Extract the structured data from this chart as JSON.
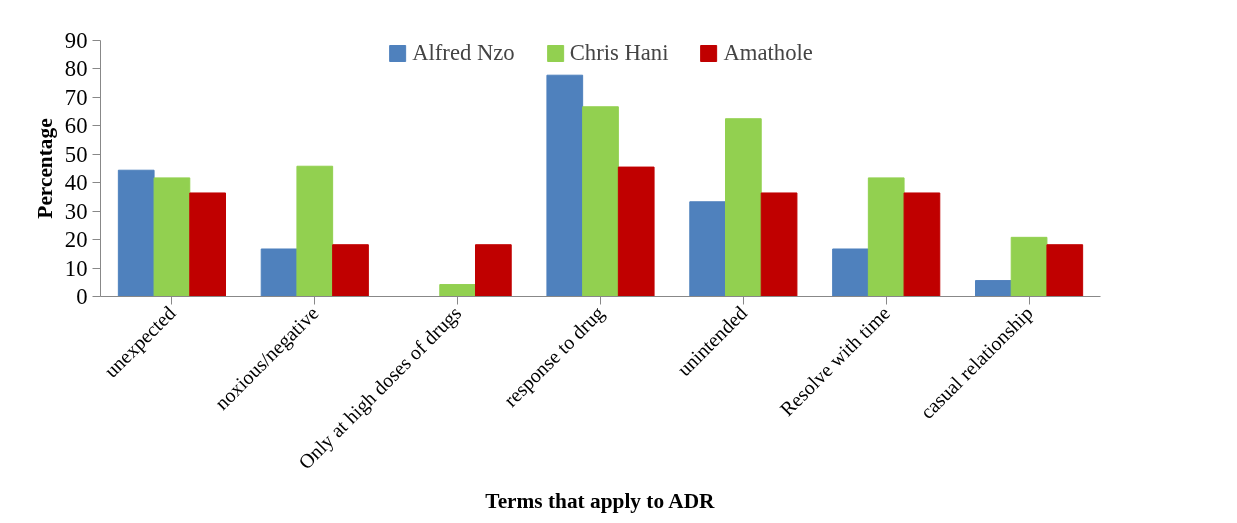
{
  "chart_data": {
    "type": "bar",
    "xlabel": "Terms that apply to ADR",
    "ylabel": "Percentage",
    "categories": [
      "unexpected",
      "noxious/negative",
      "Only at high doses of drugs",
      "response to drug",
      "unintended",
      "Resolve with time",
      "casual relationship"
    ],
    "series": [
      {
        "name": "Alfred Nzo",
        "color": "#4f81bd",
        "values": [
          44.4,
          16.7,
          0,
          77.8,
          33.3,
          16.7,
          5.6
        ]
      },
      {
        "name": "Chris Hani",
        "color": "#92d050",
        "values": [
          41.7,
          45.8,
          4.2,
          66.7,
          62.5,
          41.7,
          20.8
        ]
      },
      {
        "name": "Amathole",
        "color": "#c00000",
        "values": [
          36.4,
          18.2,
          18.2,
          45.5,
          36.4,
          36.4,
          18.2
        ]
      }
    ],
    "ylim": [
      0,
      90
    ],
    "yticks": [
      0,
      10,
      20,
      30,
      40,
      50,
      60,
      70,
      80,
      90
    ],
    "grid": false,
    "legend": "top"
  }
}
